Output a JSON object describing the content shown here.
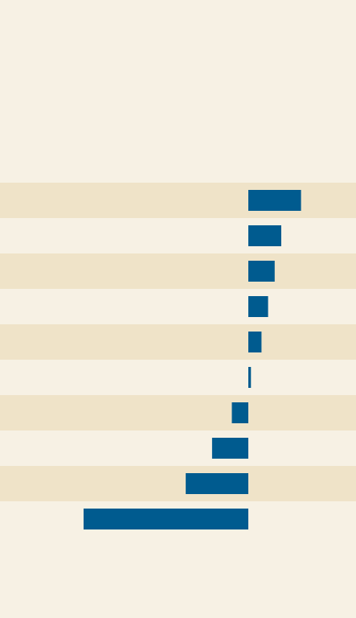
{
  "header": {
    "title": "",
    "subtitle": ""
  },
  "footer": {
    "source": ""
  },
  "colors": {
    "background": "#f7f1e4",
    "row_band": "#efe3c8",
    "bar": "#005b8f"
  },
  "chart_data": {
    "type": "bar",
    "orientation": "horizontal",
    "title": "",
    "xlabel": "",
    "ylabel": "",
    "categories": [
      "",
      "",
      "",
      "",
      "",
      "",
      "",
      "",
      "",
      ""
    ],
    "value_labels": [
      "",
      "",
      "",
      "",
      "",
      "",
      "",
      "",
      "",
      ""
    ],
    "values": [
      8,
      5,
      4,
      3,
      2,
      0.4,
      -2.5,
      -5.5,
      -9.5,
      -25
    ],
    "xlim": [
      -25,
      14
    ],
    "banded_rows": [
      0,
      2,
      4,
      6,
      8
    ],
    "grid": false,
    "legend": "none"
  }
}
